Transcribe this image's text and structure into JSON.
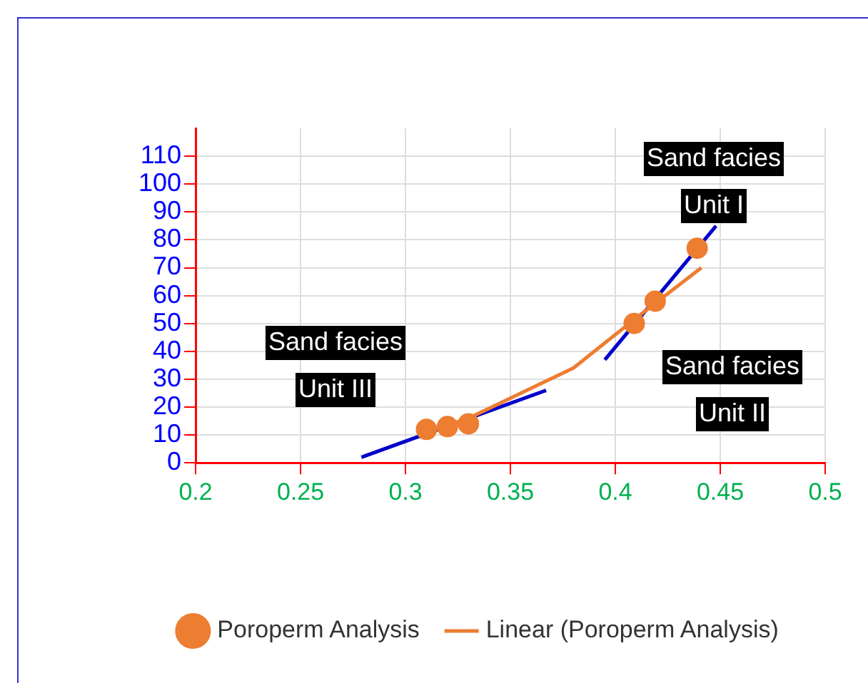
{
  "chart_data": {
    "type": "scatter",
    "xlim": [
      0.2,
      0.5
    ],
    "xticks": [
      0.2,
      0.25,
      0.3,
      0.35,
      0.4,
      0.45,
      0.5
    ],
    "ylim": [
      0,
      120
    ],
    "yticks": [
      0,
      10,
      20,
      30,
      40,
      50,
      60,
      70,
      80,
      90,
      100,
      110
    ],
    "grid": true,
    "legend": "bottom",
    "series": [
      {
        "name": "Poroperm Analysis",
        "marker": "circle",
        "color": "#ed7d31",
        "x": [
          0.31,
          0.32,
          0.33,
          0.409,
          0.419,
          0.439
        ],
        "values": [
          12,
          13,
          14,
          50,
          58,
          77
        ]
      },
      {
        "name": "Linear (Poroperm Analysis)",
        "type": "line",
        "marker": "none",
        "color": "#ed7d31",
        "x": [
          0.31,
          0.33,
          0.38,
          0.41,
          0.441
        ],
        "values": [
          11,
          16,
          34,
          52,
          70
        ]
      },
      {
        "type": "line",
        "marker": "none",
        "color": "#0000cc",
        "x": [
          0.279,
          0.367
        ],
        "values": [
          2,
          26
        ]
      },
      {
        "type": "line",
        "marker": "none",
        "color": "#0000cc",
        "x": [
          0.395,
          0.448
        ],
        "values": [
          37,
          85
        ]
      }
    ],
    "annotations": [
      "Sand facies\nUnit I",
      "Sand facies\nUnit II",
      "Sand facies\nUnit III"
    ]
  }
}
